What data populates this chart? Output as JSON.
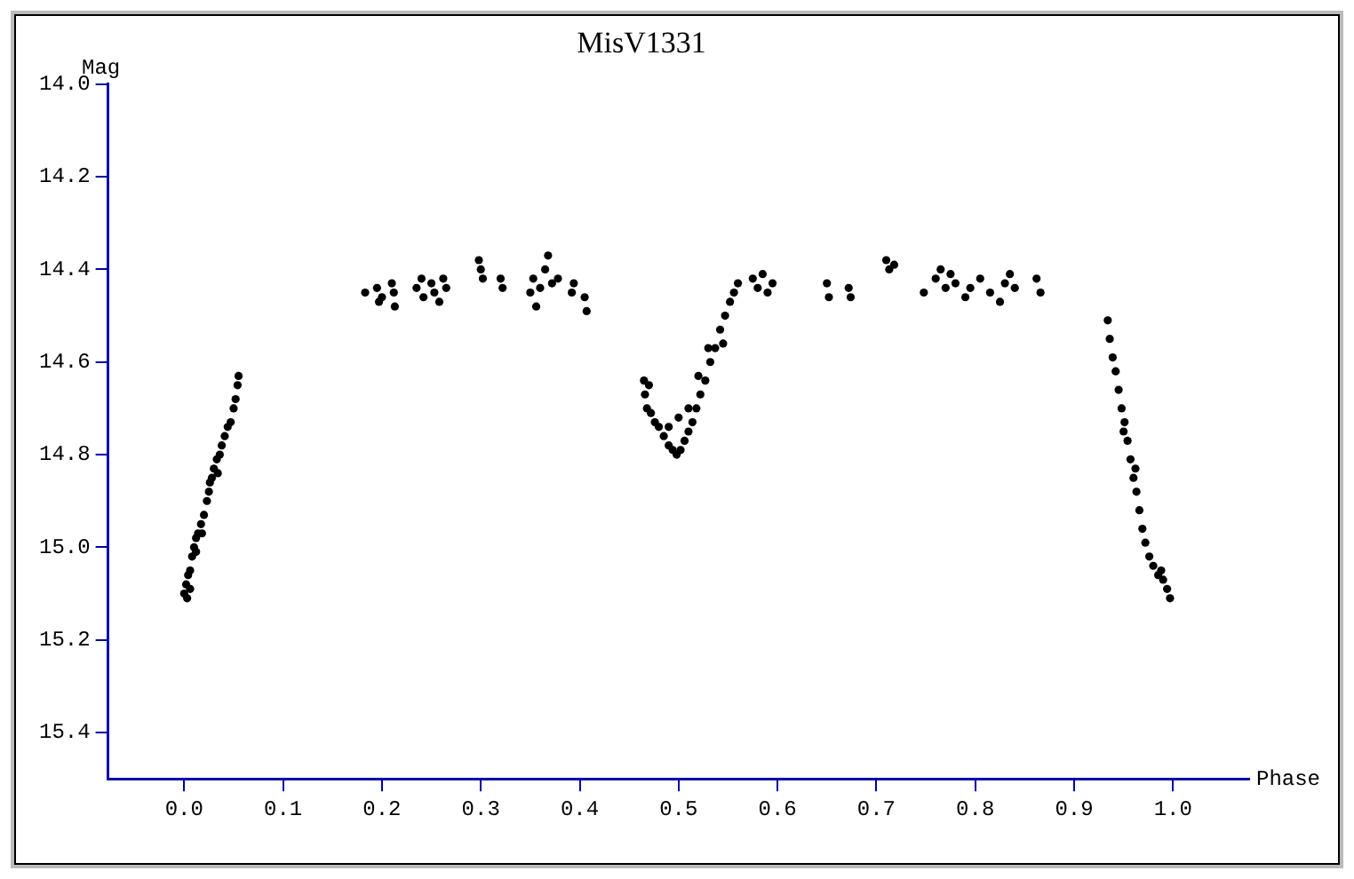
{
  "chart_data": {
    "type": "scatter",
    "title": "MisV1331",
    "xlabel": "Phase",
    "ylabel": "Mag",
    "xlim": [
      -0.077,
      1.077
    ],
    "xticks": [
      {
        "value": 0,
        "label": "0.0"
      },
      {
        "value": 0.1,
        "label": "0.1"
      },
      {
        "value": 0.2,
        "label": "0.2"
      },
      {
        "value": 0.3,
        "label": "0.3"
      },
      {
        "value": 0.4,
        "label": "0.4"
      },
      {
        "value": 0.5,
        "label": "0.5"
      },
      {
        "value": 0.6,
        "label": "0.6"
      },
      {
        "value": 0.7,
        "label": "0.7"
      },
      {
        "value": 0.8,
        "label": "0.8"
      },
      {
        "value": 0.9,
        "label": "0.9"
      },
      {
        "value": 1,
        "label": "1.0"
      }
    ],
    "ylim": [
      15.5,
      14.0
    ],
    "yticks": [
      {
        "value": 14,
        "label": "14.0"
      },
      {
        "value": 14.2,
        "label": "14.2"
      },
      {
        "value": 14.4,
        "label": "14.4"
      },
      {
        "value": 14.6,
        "label": "14.6"
      },
      {
        "value": 14.8,
        "label": "14.8"
      },
      {
        "value": 15,
        "label": "15.0"
      },
      {
        "value": 15.2,
        "label": "15.2"
      },
      {
        "value": 15.4,
        "label": "15.4"
      }
    ],
    "grid": false,
    "legend": false,
    "marker": "circle",
    "series": [
      {
        "color": "#000000",
        "x": [
          0.0,
          0.002,
          0.004,
          0.006,
          0.008,
          0.01,
          0.012,
          0.014,
          0.017,
          0.02,
          0.023,
          0.025,
          0.028,
          0.03,
          0.033,
          0.036,
          0.038,
          0.041,
          0.044,
          0.047,
          0.05,
          0.052,
          0.054,
          0.055,
          0.003,
          0.006,
          0.012,
          0.018,
          0.026,
          0.034,
          0.183,
          0.195,
          0.197,
          0.2,
          0.21,
          0.212,
          0.213,
          0.235,
          0.24,
          0.242,
          0.25,
          0.253,
          0.258,
          0.262,
          0.265,
          0.298,
          0.3,
          0.302,
          0.32,
          0.322,
          0.35,
          0.353,
          0.356,
          0.36,
          0.365,
          0.368,
          0.372,
          0.378,
          0.392,
          0.394,
          0.405,
          0.407,
          0.465,
          0.466,
          0.468,
          0.472,
          0.476,
          0.48,
          0.485,
          0.49,
          0.494,
          0.498,
          0.502,
          0.506,
          0.51,
          0.514,
          0.518,
          0.522,
          0.527,
          0.532,
          0.537,
          0.542,
          0.547,
          0.552,
          0.556,
          0.56,
          0.49,
          0.5,
          0.51,
          0.52,
          0.53,
          0.545,
          0.47,
          0.575,
          0.58,
          0.585,
          0.59,
          0.595,
          0.65,
          0.652,
          0.672,
          0.674,
          0.71,
          0.713,
          0.718,
          0.748,
          0.76,
          0.765,
          0.77,
          0.775,
          0.78,
          0.79,
          0.795,
          0.805,
          0.815,
          0.825,
          0.83,
          0.835,
          0.84,
          0.862,
          0.866,
          0.934,
          0.936,
          0.939,
          0.942,
          0.945,
          0.948,
          0.951,
          0.954,
          0.957,
          0.96,
          0.963,
          0.966,
          0.969,
          0.972,
          0.976,
          0.98,
          0.985,
          0.99,
          0.994,
          0.997,
          0.95,
          0.962,
          0.988
        ],
        "values": [
          15.1,
          15.08,
          15.06,
          15.05,
          15.02,
          15.0,
          14.98,
          14.97,
          14.95,
          14.93,
          14.9,
          14.88,
          14.85,
          14.83,
          14.81,
          14.8,
          14.78,
          14.76,
          14.74,
          14.73,
          14.7,
          14.68,
          14.65,
          14.63,
          15.11,
          15.09,
          15.01,
          14.97,
          14.86,
          14.84,
          14.45,
          14.44,
          14.47,
          14.46,
          14.43,
          14.45,
          14.48,
          14.44,
          14.42,
          14.46,
          14.43,
          14.45,
          14.47,
          14.42,
          14.44,
          14.38,
          14.4,
          14.42,
          14.42,
          14.44,
          14.45,
          14.42,
          14.48,
          14.44,
          14.4,
          14.37,
          14.43,
          14.42,
          14.45,
          14.43,
          14.46,
          14.49,
          14.64,
          14.67,
          14.7,
          14.71,
          14.73,
          14.74,
          14.76,
          14.78,
          14.79,
          14.8,
          14.79,
          14.77,
          14.75,
          14.73,
          14.7,
          14.67,
          14.64,
          14.6,
          14.57,
          14.53,
          14.5,
          14.47,
          14.45,
          14.43,
          14.74,
          14.72,
          14.7,
          14.63,
          14.57,
          14.56,
          14.65,
          14.42,
          14.44,
          14.41,
          14.45,
          14.43,
          14.43,
          14.46,
          14.44,
          14.46,
          14.38,
          14.4,
          14.39,
          14.45,
          14.42,
          14.4,
          14.44,
          14.41,
          14.43,
          14.46,
          14.44,
          14.42,
          14.45,
          14.47,
          14.43,
          14.41,
          14.44,
          14.42,
          14.45,
          14.51,
          14.55,
          14.59,
          14.62,
          14.66,
          14.7,
          14.73,
          14.77,
          14.81,
          14.85,
          14.88,
          14.92,
          14.96,
          14.99,
          15.02,
          15.04,
          15.06,
          15.07,
          15.09,
          15.11,
          14.75,
          14.83,
          15.05
        ]
      }
    ]
  }
}
